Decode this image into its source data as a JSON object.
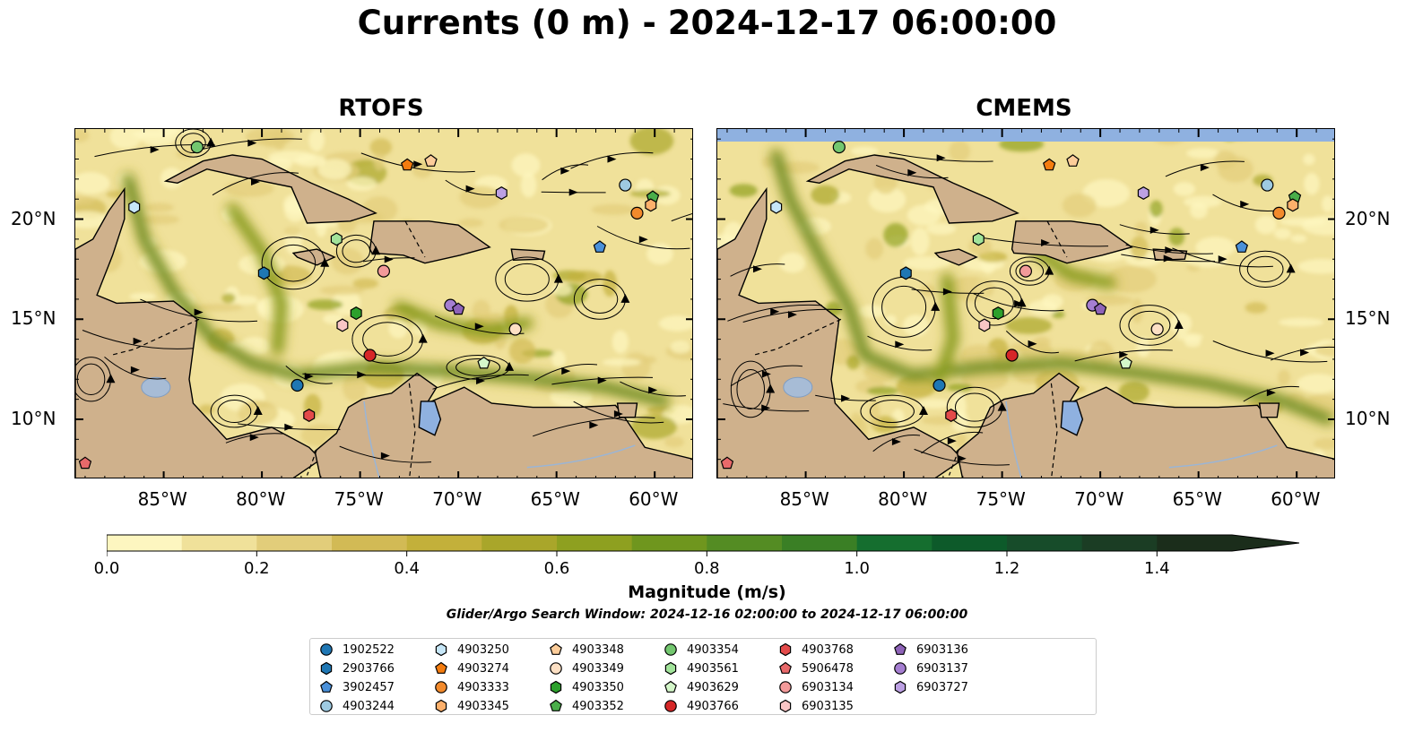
{
  "title": "Currents (0 m) - 2024-12-17 06:00:00",
  "panels": [
    {
      "title": "RTOFS",
      "model": "rtofs"
    },
    {
      "title": "CMEMS",
      "model": "cmems"
    }
  ],
  "x_ticks": [
    "85°W",
    "80°W",
    "75°W",
    "70°W",
    "65°W",
    "60°W"
  ],
  "y_ticks": [
    "20°N",
    "15°N",
    "10°N"
  ],
  "extent": {
    "lon": [
      -89.5,
      -58.0
    ],
    "lat": [
      7.0,
      24.5
    ]
  },
  "colorbar": {
    "label": "Magnitude (m/s)",
    "ticks": [
      "0.0",
      "0.2",
      "0.4",
      "0.6",
      "0.8",
      "1.0",
      "1.2",
      "1.4"
    ],
    "range": [
      0.0,
      1.5
    ],
    "colors": [
      "#fdf6c0",
      "#f0e19a",
      "#e2cd7a",
      "#d2ba55",
      "#c3b03a",
      "#a9a62a",
      "#8ea020",
      "#6f961e",
      "#548c23",
      "#3a7f25",
      "#156e2f",
      "#0d5a2a",
      "#174c2a",
      "#1b3d24",
      "#1b2d1b"
    ]
  },
  "search_window": "Glider/Argo Search Window: 2024-12-16 02:00:00 to 2024-12-17 06:00:00",
  "legend": [
    {
      "id": "1902522",
      "color": "#1f77b4",
      "shape": "circle"
    },
    {
      "id": "2903766",
      "color": "#1f77b4",
      "shape": "hexagon"
    },
    {
      "id": "3902457",
      "color": "#4a90d9",
      "shape": "pentagon"
    },
    {
      "id": "4903244",
      "color": "#9ecae1",
      "shape": "circle"
    },
    {
      "id": "4903250",
      "color": "#c6e6f7",
      "shape": "hexagon"
    },
    {
      "id": "4903274",
      "color": "#f47c0f",
      "shape": "pentagon"
    },
    {
      "id": "4903333",
      "color": "#f28a2c",
      "shape": "circle"
    },
    {
      "id": "4903345",
      "color": "#fdb06b",
      "shape": "hexagon"
    },
    {
      "id": "4903348",
      "color": "#fdcd9a",
      "shape": "pentagon"
    },
    {
      "id": "4903349",
      "color": "#fde0c4",
      "shape": "circle"
    },
    {
      "id": "4903350",
      "color": "#2ca02c",
      "shape": "hexagon"
    },
    {
      "id": "4903352",
      "color": "#4aae4a",
      "shape": "pentagon"
    },
    {
      "id": "4903354",
      "color": "#73c76f",
      "shape": "circle"
    },
    {
      "id": "4903561",
      "color": "#a1e39a",
      "shape": "hexagon"
    },
    {
      "id": "4903629",
      "color": "#d4f7c9",
      "shape": "pentagon"
    },
    {
      "id": "4903766",
      "color": "#d62728",
      "shape": "circle"
    },
    {
      "id": "4903768",
      "color": "#e34a4a",
      "shape": "hexagon"
    },
    {
      "id": "5906478",
      "color": "#e8696a",
      "shape": "pentagon"
    },
    {
      "id": "6903134",
      "color": "#f29a9a",
      "shape": "circle"
    },
    {
      "id": "6903135",
      "color": "#f9c6c6",
      "shape": "hexagon"
    },
    {
      "id": "6903136",
      "color": "#8e63b8",
      "shape": "pentagon"
    },
    {
      "id": "6903137",
      "color": "#a57ed1",
      "shape": "circle"
    },
    {
      "id": "6903727",
      "color": "#bca0e3",
      "shape": "hexagon"
    }
  ],
  "markers": [
    {
      "id": "4903354",
      "lon": -83.3,
      "lat": 23.6
    },
    {
      "id": "4903250",
      "lon": -86.5,
      "lat": 20.6
    },
    {
      "id": "2903766",
      "lon": -79.9,
      "lat": 17.3
    },
    {
      "id": "1902522",
      "lon": -78.2,
      "lat": 11.7
    },
    {
      "id": "4903768",
      "lon": -77.6,
      "lat": 10.2
    },
    {
      "id": "4903561",
      "lon": -76.2,
      "lat": 19.0
    },
    {
      "id": "4903350",
      "lon": -75.2,
      "lat": 15.3
    },
    {
      "id": "6903135",
      "lon": -75.9,
      "lat": 14.7
    },
    {
      "id": "4903766",
      "lon": -74.5,
      "lat": 13.2
    },
    {
      "id": "6903134",
      "lon": -73.8,
      "lat": 17.4
    },
    {
      "id": "4903274",
      "lon": -72.6,
      "lat": 22.7
    },
    {
      "id": "4903348",
      "lon": -71.4,
      "lat": 22.9
    },
    {
      "id": "6903727",
      "lon": -67.8,
      "lat": 21.3
    },
    {
      "id": "6903137",
      "lon": -70.4,
      "lat": 15.7
    },
    {
      "id": "6903136",
      "lon": -70.0,
      "lat": 15.5
    },
    {
      "id": "4903349",
      "lon": -67.1,
      "lat": 14.5
    },
    {
      "id": "4903629",
      "lon": -68.7,
      "lat": 12.8
    },
    {
      "id": "4903244",
      "lon": -61.5,
      "lat": 21.7
    },
    {
      "id": "4903352",
      "lon": -60.1,
      "lat": 21.1
    },
    {
      "id": "4903345",
      "lon": -60.2,
      "lat": 20.7
    },
    {
      "id": "4903333",
      "lon": -60.9,
      "lat": 20.3
    },
    {
      "id": "3902457",
      "lon": -62.8,
      "lat": 18.6
    },
    {
      "id": "5906478",
      "lon": -89.0,
      "lat": 7.8
    }
  ]
}
